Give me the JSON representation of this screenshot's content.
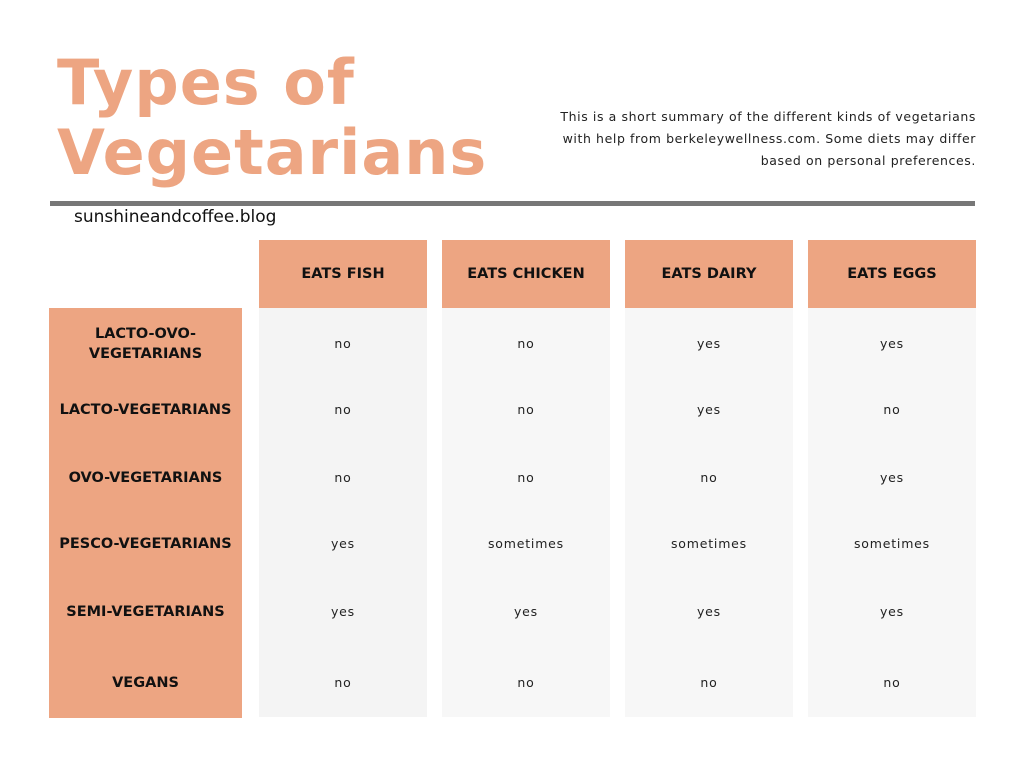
{
  "title_line1": "Types of",
  "title_line2": "Vegetarians",
  "summary": "This is a short summary of the different kinds of vegetarians with help from berkeleywellness.com. Some diets may differ based on personal preferences.",
  "blog": "sunshineandcoffee.blog",
  "colors": {
    "accent": "#eda582",
    "divider": "#777777"
  },
  "columns": [
    "EATS FISH",
    "EATS CHICKEN",
    "EATS DAIRY",
    "EATS EGGS"
  ],
  "rows": [
    {
      "label": "LACTO-OVO-VEGETARIANS",
      "values": [
        "no",
        "no",
        "yes",
        "yes"
      ]
    },
    {
      "label": "LACTO-VEGETARIANS",
      "values": [
        "no",
        "no",
        "yes",
        "no"
      ]
    },
    {
      "label": "OVO-VEGETARIANS",
      "values": [
        "no",
        "no",
        "no",
        "yes"
      ]
    },
    {
      "label": "PESCO-VEGETARIANS",
      "values": [
        "yes",
        "sometimes",
        "sometimes",
        "sometimes"
      ]
    },
    {
      "label": "SEMI-VEGETARIANS",
      "values": [
        "yes",
        "yes",
        "yes",
        "yes"
      ]
    },
    {
      "label": "VEGANS",
      "values": [
        "no",
        "no",
        "no",
        "no"
      ]
    }
  ]
}
